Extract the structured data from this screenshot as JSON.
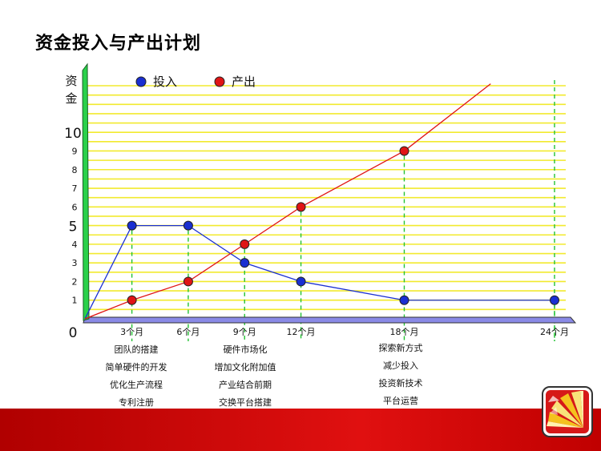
{
  "slide": {
    "title": "资金投入与产出计划",
    "annotations": [
      {
        "lines": [
          "团队的搭建",
          "简单硬件的开发",
          "优化生产流程",
          "专利注册"
        ]
      },
      {
        "lines": [
          "硬件市场化",
          "增加文化附加值",
          "产业结合前期",
          "交换平台搭建"
        ]
      },
      {
        "lines": [
          "探索新方式",
          "减少投入",
          "投资新技术",
          "平台运营"
        ]
      }
    ]
  },
  "chart_data": {
    "type": "line",
    "ylabel": "资金",
    "x_tick_labels": [
      "3个月",
      "6个月",
      "9个月",
      "12个月",
      "18个月",
      "24个月"
    ],
    "x_ticks": [
      3,
      6,
      9,
      12,
      18,
      24
    ],
    "y_tick_labels": [
      "0",
      "1",
      "2",
      "3",
      "4",
      "5",
      "6",
      "7",
      "8",
      "9",
      "10"
    ],
    "y_ticks": [
      0,
      1,
      2,
      3,
      4,
      5,
      6,
      7,
      8,
      9,
      10
    ],
    "xlim": [
      0,
      25
    ],
    "ylim": [
      0,
      13
    ],
    "grid": true,
    "legend_position": "top",
    "series": [
      {
        "name": "投入",
        "color": "#1a2fd1",
        "x": [
          0,
          2.5,
          5.5,
          8.5,
          11.5,
          17,
          25
        ],
        "y": [
          0,
          5,
          5,
          3,
          2,
          1,
          1
        ],
        "markers_x": [
          2.5,
          5.5,
          8.5,
          11.5,
          17,
          25
        ],
        "markers_y": [
          5,
          5,
          3,
          2,
          1,
          1
        ]
      },
      {
        "name": "产出",
        "color": "#e01515",
        "x": [
          0,
          2.5,
          5.5,
          8.5,
          11.5,
          17,
          21.6
        ],
        "y": [
          0,
          1,
          2,
          4,
          6,
          9,
          12.6
        ],
        "markers_x": [
          2.5,
          5.5,
          8.5,
          11.5,
          17
        ],
        "markers_y": [
          1,
          2,
          4,
          6,
          9
        ]
      }
    ]
  }
}
